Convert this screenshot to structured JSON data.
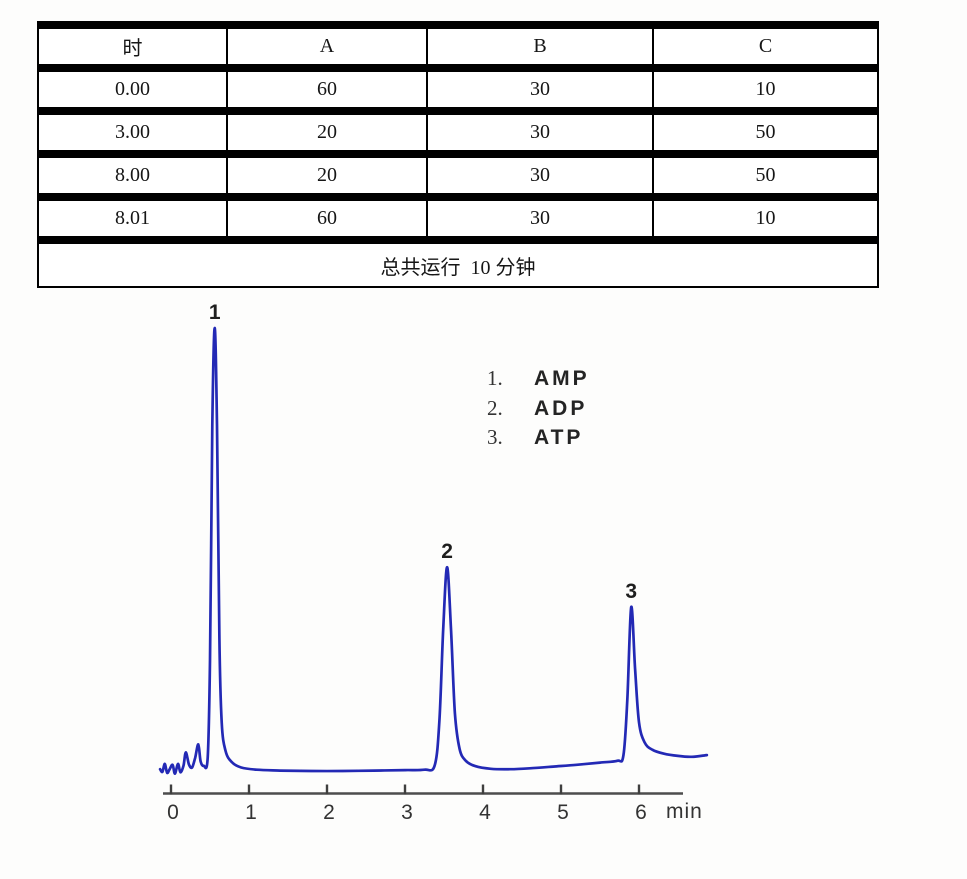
{
  "table": {
    "headers": [
      "时",
      "A",
      "B",
      "C"
    ],
    "rows": [
      [
        "0.00",
        "60",
        "30",
        "10"
      ],
      [
        "3.00",
        "20",
        "30",
        "50"
      ],
      [
        "8.00",
        "20",
        "30",
        "50"
      ],
      [
        "8.01",
        "60",
        "30",
        "10"
      ]
    ],
    "footer": "总共运行  10 分钟"
  },
  "chart_data": {
    "type": "line",
    "title": "",
    "xlabel": "min",
    "ylabel": "",
    "x_ticks": [
      0,
      1,
      2,
      3,
      4,
      5,
      6
    ],
    "xlim": [
      -0.15,
      6.9
    ],
    "grid": false,
    "legend_position": "upper right",
    "trace_color": "#2329b5",
    "axis_color": "#4d4d4d",
    "peaks": [
      {
        "number": "1",
        "name": "AMP",
        "rt_min": 0.56,
        "height": 100
      },
      {
        "number": "2",
        "name": "ADP",
        "rt_min": 3.54,
        "height": 46
      },
      {
        "number": "3",
        "name": "ATP",
        "rt_min": 5.9,
        "height": 37
      }
    ],
    "trace": [
      [
        -0.14,
        0.4
      ],
      [
        -0.11,
        -0.2
      ],
      [
        -0.08,
        1.6
      ],
      [
        -0.05,
        -0.4
      ],
      [
        -0.02,
        0.3
      ],
      [
        0.02,
        1.4
      ],
      [
        0.05,
        -0.6
      ],
      [
        0.09,
        1.6
      ],
      [
        0.12,
        -0.3
      ],
      [
        0.16,
        1.2
      ],
      [
        0.19,
        4.2
      ],
      [
        0.23,
        1.5
      ],
      [
        0.27,
        0.8
      ],
      [
        0.31,
        3.0
      ],
      [
        0.35,
        6.0
      ],
      [
        0.38,
        2.2
      ],
      [
        0.42,
        1.2
      ],
      [
        0.47,
        3.0
      ],
      [
        0.5,
        25
      ],
      [
        0.53,
        78
      ],
      [
        0.56,
        100
      ],
      [
        0.59,
        78
      ],
      [
        0.62,
        30
      ],
      [
        0.65,
        11
      ],
      [
        0.7,
        4.5
      ],
      [
        0.78,
        2.0
      ],
      [
        0.9,
        0.8
      ],
      [
        1.1,
        0.3
      ],
      [
        1.4,
        0.1
      ],
      [
        1.8,
        0.0
      ],
      [
        2.2,
        0.0
      ],
      [
        2.6,
        0.1
      ],
      [
        3.0,
        0.2
      ],
      [
        3.25,
        0.3
      ],
      [
        3.38,
        1.2
      ],
      [
        3.44,
        11
      ],
      [
        3.49,
        32
      ],
      [
        3.54,
        46
      ],
      [
        3.59,
        32
      ],
      [
        3.64,
        13
      ],
      [
        3.7,
        5.0
      ],
      [
        3.78,
        2.3
      ],
      [
        3.9,
        1.1
      ],
      [
        4.1,
        0.5
      ],
      [
        4.35,
        0.4
      ],
      [
        4.6,
        0.6
      ],
      [
        4.9,
        1.0
      ],
      [
        5.2,
        1.4
      ],
      [
        5.5,
        1.9
      ],
      [
        5.72,
        2.3
      ],
      [
        5.8,
        3.5
      ],
      [
        5.85,
        16
      ],
      [
        5.9,
        37
      ],
      [
        5.95,
        23
      ],
      [
        6.0,
        11
      ],
      [
        6.07,
        6.5
      ],
      [
        6.17,
        4.8
      ],
      [
        6.32,
        3.9
      ],
      [
        6.5,
        3.4
      ],
      [
        6.68,
        3.2
      ],
      [
        6.87,
        3.6
      ]
    ]
  }
}
